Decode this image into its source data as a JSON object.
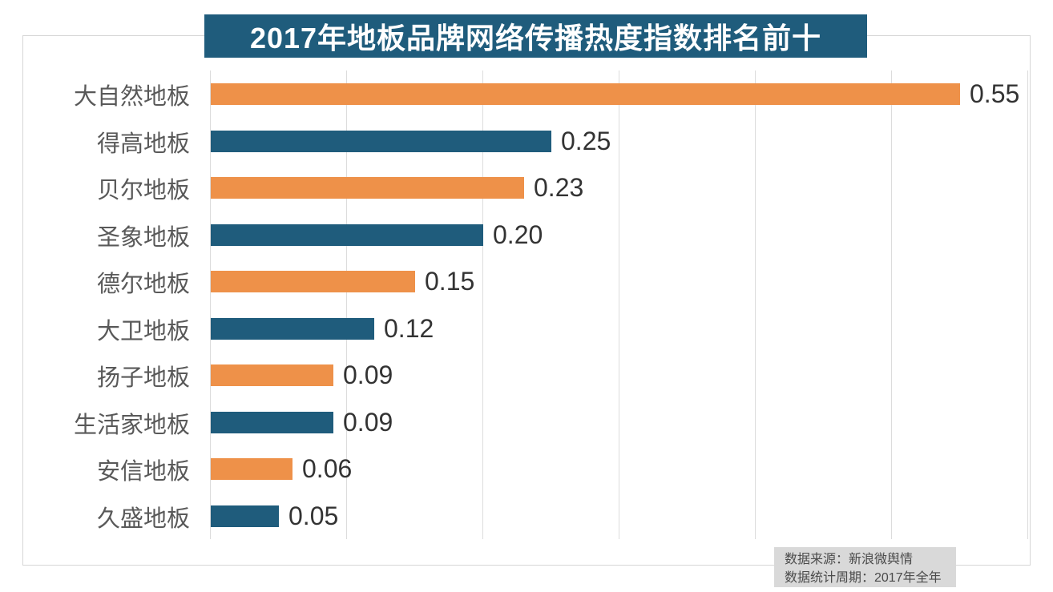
{
  "title_banner": {
    "text": "2017年地板品牌网络传播热度指数排名前十"
  },
  "chart_data": {
    "type": "bar",
    "orientation": "horizontal",
    "title": "2017年地板品牌网络传播热度指数排名前十",
    "categories": [
      "大自然地板",
      "得高地板",
      "贝尔地板",
      "圣象地板",
      "德尔地板",
      "大卫地板",
      "扬子地板",
      "生活家地板",
      "安信地板",
      "久盛地板"
    ],
    "values": [
      0.55,
      0.25,
      0.23,
      0.2,
      0.15,
      0.12,
      0.09,
      0.09,
      0.06,
      0.05
    ],
    "value_labels": [
      "0.55",
      "0.25",
      "0.23",
      "0.20",
      "0.15",
      "0.12",
      "0.09",
      "0.09",
      "0.06",
      "0.05"
    ],
    "bar_colors": [
      "#EE9149",
      "#1F5C7C",
      "#EE9149",
      "#1F5C7C",
      "#EE9149",
      "#1F5C7C",
      "#EE9149",
      "#1F5C7C",
      "#EE9149",
      "#1F5C7C"
    ],
    "xlabel": "",
    "ylabel": "",
    "xlim": [
      0,
      0.6
    ],
    "gridline_step": 0.1,
    "grid": true,
    "legend_position": "none"
  },
  "colors": {
    "orange": "#EE9149",
    "teal": "#1F5C7C",
    "title_bg": "#1F5C7C",
    "title_text": "#FFFFFF",
    "grid": "#DCDCDC",
    "frame_border": "#D6D6D6",
    "category_text": "#595959",
    "value_text": "#333333",
    "source_bg": "#D9D9D9",
    "source_text": "#4B4B4B"
  },
  "source_note": {
    "line1": "数据来源：新浪微舆情",
    "line2": "数据统计周期：2017年全年"
  }
}
